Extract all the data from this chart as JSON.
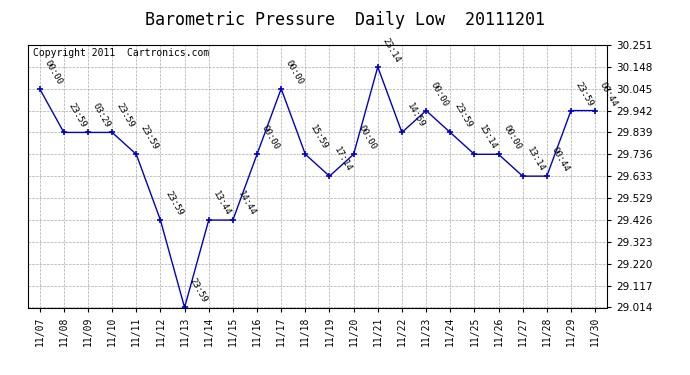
{
  "title": "Barometric Pressure  Daily Low  20111201",
  "copyright": "Copyright 2011  Cartronics.com",
  "x_labels": [
    "11/07",
    "11/08",
    "11/09",
    "11/10",
    "11/11",
    "11/12",
    "11/13",
    "11/14",
    "11/15",
    "11/16",
    "11/17",
    "11/18",
    "11/19",
    "11/20",
    "11/21",
    "11/22",
    "11/23",
    "11/24",
    "11/25",
    "11/26",
    "11/27",
    "11/28",
    "11/29",
    "11/30"
  ],
  "y_ticks": [
    29.014,
    29.117,
    29.22,
    29.323,
    29.426,
    29.529,
    29.633,
    29.736,
    29.839,
    29.942,
    30.045,
    30.148,
    30.251
  ],
  "data_points": [
    {
      "x": "11/07",
      "y": 30.045,
      "label": "00:00"
    },
    {
      "x": "11/08",
      "y": 29.839,
      "label": "23:59"
    },
    {
      "x": "11/09",
      "y": 29.839,
      "label": "03:29"
    },
    {
      "x": "11/10",
      "y": 29.839,
      "label": "23:59"
    },
    {
      "x": "11/11",
      "y": 29.736,
      "label": "23:59"
    },
    {
      "x": "11/12",
      "y": 29.426,
      "label": "23:59"
    },
    {
      "x": "11/13",
      "y": 29.014,
      "label": "23:59"
    },
    {
      "x": "11/14",
      "y": 29.426,
      "label": "13:44"
    },
    {
      "x": "11/15",
      "y": 29.426,
      "label": "14:44"
    },
    {
      "x": "11/16",
      "y": 29.736,
      "label": "00:00"
    },
    {
      "x": "11/17",
      "y": 30.045,
      "label": "00:00"
    },
    {
      "x": "11/18",
      "y": 29.736,
      "label": "15:59"
    },
    {
      "x": "11/19",
      "y": 29.633,
      "label": "17:14"
    },
    {
      "x": "11/20",
      "y": 29.736,
      "label": "00:00"
    },
    {
      "x": "11/21",
      "y": 30.148,
      "label": "23:14"
    },
    {
      "x": "11/22",
      "y": 29.839,
      "label": "14:59"
    },
    {
      "x": "11/23",
      "y": 29.942,
      "label": "00:00"
    },
    {
      "x": "11/24",
      "y": 29.839,
      "label": "23:59"
    },
    {
      "x": "11/25",
      "y": 29.736,
      "label": "15:14"
    },
    {
      "x": "11/26",
      "y": 29.736,
      "label": "00:00"
    },
    {
      "x": "11/27",
      "y": 29.633,
      "label": "13:14"
    },
    {
      "x": "11/28",
      "y": 29.633,
      "label": "00:44"
    },
    {
      "x": "11/29",
      "y": 29.942,
      "label": "23:59"
    },
    {
      "x": "11/30",
      "y": 29.942,
      "label": "00:44"
    }
  ],
  "line_color": "#0000cc",
  "marker_color": "#0000cc",
  "bg_color": "#ffffff",
  "grid_color": "#aaaaaa",
  "title_fontsize": 12,
  "label_fontsize": 6.5,
  "copyright_fontsize": 7,
  "ylim_min": 29.014,
  "ylim_max": 30.251,
  "fig_width": 6.9,
  "fig_height": 3.75,
  "dpi": 100
}
